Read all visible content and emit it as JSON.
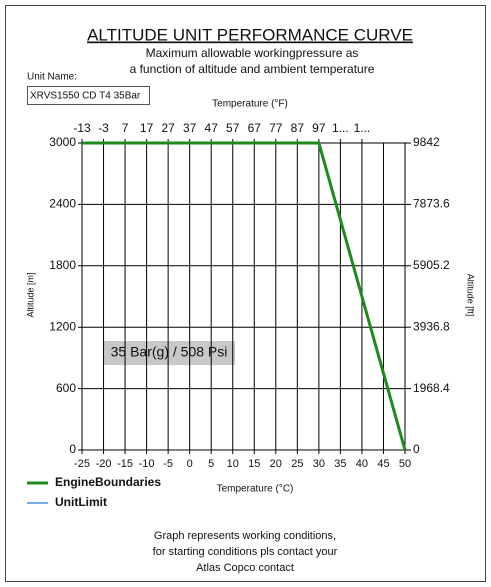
{
  "unit_name_label": "Unit Name:",
  "unit_name": "XRVS1550 CD T4 35Bar",
  "chart_data": {
    "type": "line",
    "title": "ALTITUDE UNIT PERFORMANCE CURVE",
    "subtitle": [
      "Maximum allowable workingpressure as",
      "a function of altitude and ambient temperature"
    ],
    "xlabel": "Temperature (°C)",
    "x2label": "Temperature (°F)",
    "ylabel": "Altitude [m]",
    "y2label": "Altitude [ft]",
    "xlim": [
      -25,
      50
    ],
    "xticks": [
      -25,
      -20,
      -15,
      -10,
      -5,
      0,
      5,
      10,
      15,
      20,
      25,
      30,
      35,
      40,
      45,
      50
    ],
    "x2lim": [
      -13,
      137
    ],
    "x2ticks": [
      -13,
      -3,
      7,
      17,
      27,
      37,
      47,
      57,
      67,
      77,
      87,
      97,
      {
        "value": 107,
        "label": "1..."
      },
      {
        "value": 117,
        "label": "1..."
      }
    ],
    "ylim": [
      0,
      3000
    ],
    "yticks": [
      0,
      600,
      1200,
      1800,
      2400,
      3000
    ],
    "y2lim": [
      0,
      9842
    ],
    "y2ticks": [
      0,
      1968.4,
      3936.8,
      5905.2,
      7873.6,
      9842
    ],
    "grid": true,
    "series": [
      {
        "name": "EngineBoundaries",
        "color": "#1e8a1e",
        "x": [
          -25,
          30,
          50
        ],
        "values": [
          3000,
          3000,
          0
        ]
      },
      {
        "name": "UnitLimit",
        "color": "#4a8fdc",
        "x": [],
        "values": []
      }
    ],
    "annotation": "35 Bar(g) / 508 Psi"
  },
  "footer": [
    "Graph represents working conditions,",
    "for starting conditions pls contact your",
    "Atlas Copco contact"
  ]
}
